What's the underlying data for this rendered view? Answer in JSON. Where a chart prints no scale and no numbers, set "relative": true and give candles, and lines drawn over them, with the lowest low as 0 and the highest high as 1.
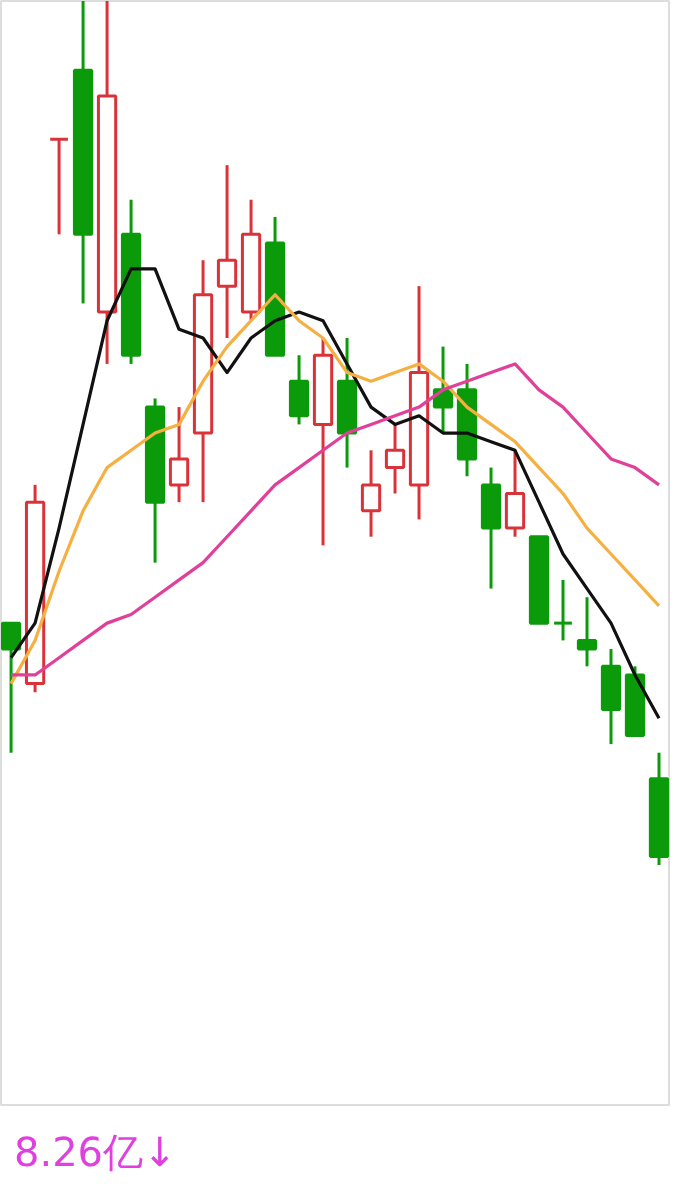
{
  "chart_data": {
    "type": "candlestick",
    "relative": true,
    "categories": [
      null,
      null,
      null,
      null,
      null,
      null,
      null,
      null,
      null,
      null,
      null,
      null,
      null,
      null,
      null,
      null,
      null,
      null,
      null,
      null,
      null,
      null,
      null,
      null,
      null,
      null,
      null,
      null
    ],
    "ohlc": [
      [
        0.28,
        0.28,
        0.13,
        0.25
      ],
      [
        0.21,
        0.44,
        0.2,
        0.42
      ],
      [
        0.84,
        0.84,
        0.73,
        0.84
      ],
      [
        0.92,
        1.0,
        0.65,
        0.73
      ],
      [
        0.64,
        1.0,
        0.58,
        0.89
      ],
      [
        0.73,
        0.77,
        0.58,
        0.59
      ],
      [
        0.53,
        0.54,
        0.35,
        0.42
      ],
      [
        0.44,
        0.53,
        0.42,
        0.47
      ],
      [
        0.5,
        0.7,
        0.42,
        0.66
      ],
      [
        0.67,
        0.81,
        0.61,
        0.7
      ],
      [
        0.64,
        0.77,
        0.63,
        0.73
      ],
      [
        0.72,
        0.75,
        0.59,
        0.59
      ],
      [
        0.56,
        0.59,
        0.51,
        0.52
      ],
      [
        0.51,
        0.61,
        0.37,
        0.59
      ],
      [
        0.56,
        0.61,
        0.46,
        0.5
      ],
      [
        0.41,
        0.48,
        0.38,
        0.44
      ],
      [
        0.46,
        0.51,
        0.43,
        0.48
      ],
      [
        0.44,
        0.67,
        0.4,
        0.57
      ],
      [
        0.55,
        0.6,
        0.5,
        0.53
      ],
      [
        0.55,
        0.58,
        0.45,
        0.47
      ],
      [
        0.44,
        0.46,
        0.32,
        0.39
      ],
      [
        0.39,
        0.48,
        0.38,
        0.43
      ],
      [
        0.38,
        0.38,
        0.28,
        0.28
      ],
      [
        0.28,
        0.33,
        0.26,
        0.28
      ],
      [
        0.26,
        0.31,
        0.23,
        0.25
      ],
      [
        0.23,
        0.25,
        0.14,
        0.18
      ],
      [
        0.22,
        0.23,
        0.15,
        0.15
      ],
      [
        0.1,
        0.13,
        0.0,
        0.01
      ]
    ],
    "colors": [
      "#0a9a0a",
      "#d9333a",
      "#d9333a",
      "#0a9a0a",
      "#d9333a",
      "#0a9a0a",
      "#0a9a0a",
      "#d9333a",
      "#d9333a",
      "#d9333a",
      "#d9333a",
      "#0a9a0a",
      "#0a9a0a",
      "#d9333a",
      "#0a9a0a",
      "#d9333a",
      "#d9333a",
      "#d9333a",
      "#0a9a0a",
      "#0a9a0a",
      "#0a9a0a",
      "#d9333a",
      "#0a9a0a",
      "#0a9a0a",
      "#0a9a0a",
      "#0a9a0a",
      "#0a9a0a",
      "#0a9a0a"
    ],
    "series": [
      {
        "type": "line",
        "color": "#111111",
        "values": [
          0.24,
          0.28,
          0.39,
          0.51,
          0.63,
          0.69,
          0.69,
          0.62,
          0.61,
          0.57,
          0.61,
          0.63,
          0.64,
          0.63,
          0.58,
          0.53,
          0.51,
          0.52,
          0.5,
          0.5,
          0.49,
          0.48,
          0.42,
          0.36,
          0.32,
          0.28,
          0.22,
          0.17
        ]
      },
      {
        "type": "line",
        "color": "#f5b041",
        "values": [
          0.21,
          0.26,
          0.34,
          0.41,
          0.46,
          0.48,
          0.5,
          0.51,
          0.56,
          0.6,
          0.63,
          0.66,
          0.63,
          0.61,
          0.57,
          0.56,
          0.57,
          0.58,
          0.56,
          0.53,
          0.51,
          0.49,
          0.46,
          0.43,
          0.39,
          0.36,
          0.33,
          0.3
        ]
      },
      {
        "type": "line",
        "color": "#e0409a",
        "values": [
          0.22,
          0.22,
          0.24,
          0.26,
          0.28,
          0.29,
          0.31,
          0.33,
          0.35,
          0.38,
          0.41,
          0.44,
          0.46,
          0.48,
          0.5,
          0.51,
          0.52,
          0.53,
          0.55,
          0.56,
          0.57,
          0.58,
          0.55,
          0.53,
          0.5,
          0.47,
          0.46,
          0.44
        ]
      }
    ],
    "annotations": [
      "8.26亿↓"
    ]
  }
}
